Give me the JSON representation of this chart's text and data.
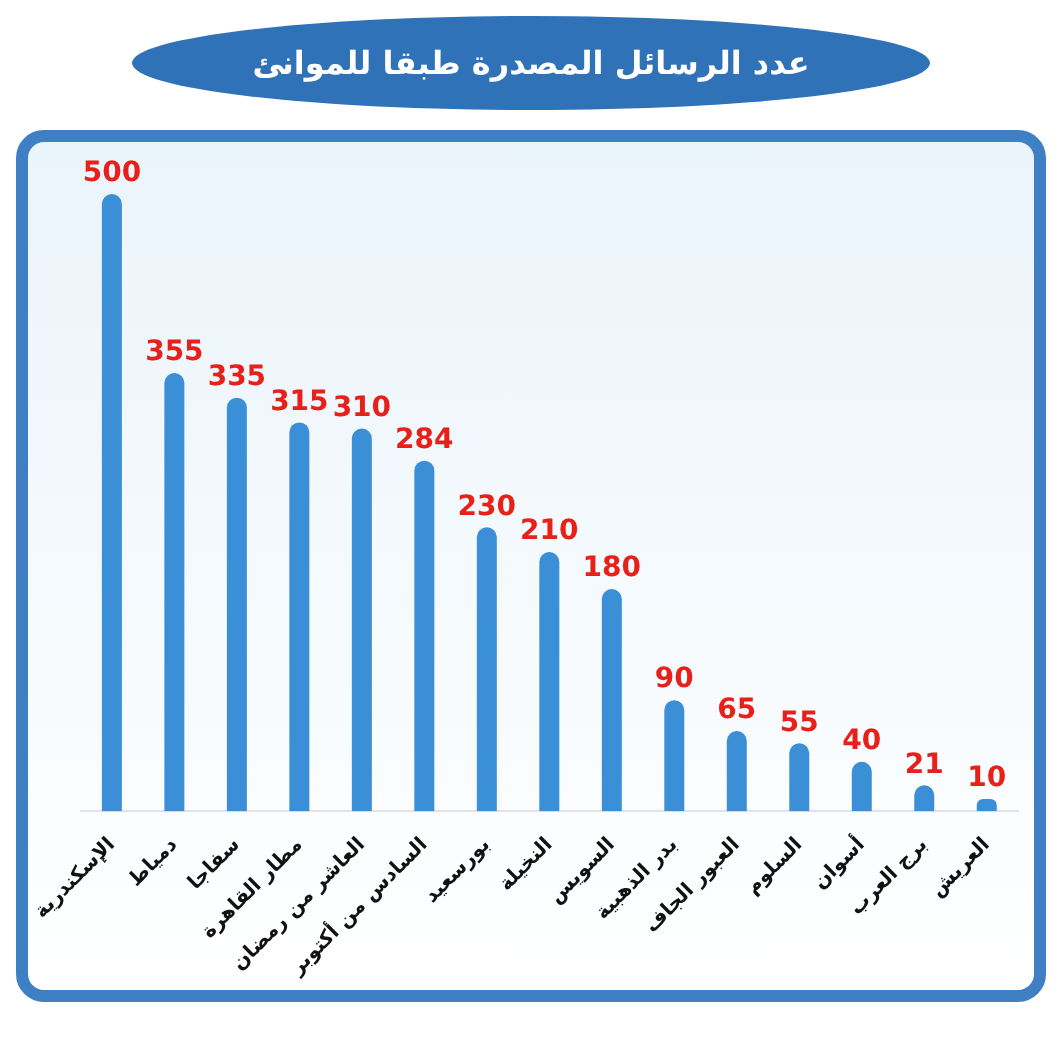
{
  "chart_data": {
    "type": "bar",
    "title": "عدد الرسائل المصدرة طبقا للموانئ",
    "categories": [
      "الإسكندرية",
      "دمياط",
      "سفاجا",
      "مطار القاهرة",
      "العاشر من رمضان",
      "السادس من أكتوبر",
      "بورسعيد",
      "النخيلة",
      "السويس",
      "بدر الذهبية",
      "العبور الجاف",
      "السلوم",
      "أسوان",
      "برج العرب",
      "العريش"
    ],
    "values": [
      500,
      355,
      335,
      315,
      310,
      284,
      230,
      210,
      180,
      90,
      65,
      55,
      40,
      21,
      10
    ],
    "color": "#3a8fd6",
    "data_labels": true,
    "grid": false,
    "legend": false
  }
}
